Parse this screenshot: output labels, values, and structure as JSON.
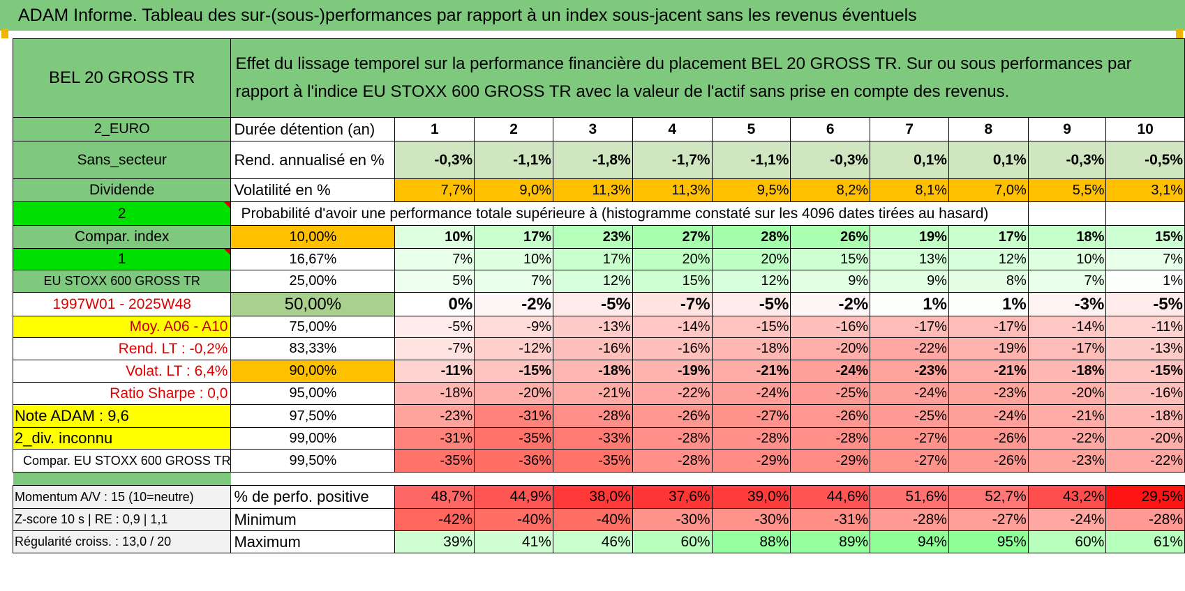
{
  "banner": "ADAM Informe. Tableau des sur-(sous-)performances par rapport à un index sous-jacent sans les revenus éventuels",
  "colors": {
    "header_green": "#7fc97f",
    "bright_green": "#00e000",
    "orange": "#ffc000",
    "yellow": "#ffff00",
    "red_text": "#e00000"
  },
  "instrument": "BEL 20 GROSS TR",
  "description": "Effet du lissage temporel sur la performance financière du placement BEL 20 GROSS TR. Sur ou sous performances par rapport à l'indice EU STOXX 600 GROSS TR avec la valeur de l'actif sans prise en compte des revenus.",
  "left": {
    "currency": "2_EURO",
    "sector": "Sans_secteur",
    "dividend": "Dividende",
    "code2": "2",
    "compar_index": "Compar. index",
    "code1": "1",
    "index_name": "EU STOXX 600 GROSS TR",
    "period": "1997W01 - 2025W48",
    "moy": "Moy. A06 - A10",
    "rend_lt": "Rend. LT :    -0,2%",
    "volat_lt": "Volat. LT :    6,4%",
    "ratio_sharpe": "Ratio Sharpe :     0,0",
    "note_adam": "Note ADAM : 9,6",
    "div_inconnu": "2_div. inconnu",
    "compar_full": "Compar. EU STOXX 600 GROSS TR",
    "momentum": "Momentum A/V : 15 (10=neutre)",
    "zscore": "Z-score 10 s | RE : 0,9 | 1,1",
    "regularite": "Régularité croiss. : 13,0 / 20"
  },
  "row_labels": {
    "duree": "Durée détention (an)",
    "rend": "Rend. annualisé en %",
    "vol": "Volatilité en %",
    "prob": "Probabilité d'avoir une performance totale supérieure à (histogramme constaté sur les 4096 dates tirées au hasard)",
    "pos": "% de perfo. positive",
    "min": "Minimum",
    "max": "Maximum"
  },
  "years": [
    "1",
    "2",
    "3",
    "4",
    "5",
    "6",
    "7",
    "8",
    "9",
    "10"
  ],
  "rend": [
    "-0,3%",
    "-1,1%",
    "-1,8%",
    "-1,7%",
    "-1,1%",
    "-0,3%",
    "0,1%",
    "0,1%",
    "-0,3%",
    "-0,5%"
  ],
  "vol": [
    "7,7%",
    "9,0%",
    "11,3%",
    "11,3%",
    "9,5%",
    "8,2%",
    "8,1%",
    "7,0%",
    "5,5%",
    "3,1%"
  ],
  "percentiles": [
    {
      "p": "10,00%",
      "values": [
        "10%",
        "17%",
        "23%",
        "27%",
        "28%",
        "26%",
        "19%",
        "17%",
        "18%",
        "15%"
      ]
    },
    {
      "p": "16,67%",
      "values": [
        "7%",
        "10%",
        "17%",
        "20%",
        "20%",
        "15%",
        "13%",
        "12%",
        "10%",
        "7%"
      ]
    },
    {
      "p": "25,00%",
      "values": [
        "5%",
        "7%",
        "12%",
        "15%",
        "12%",
        "9%",
        "9%",
        "8%",
        "7%",
        "1%"
      ]
    },
    {
      "p": "50,00%",
      "values": [
        "0%",
        "-2%",
        "-5%",
        "-7%",
        "-5%",
        "-2%",
        "1%",
        "1%",
        "-3%",
        "-5%"
      ]
    },
    {
      "p": "75,00%",
      "values": [
        "-5%",
        "-9%",
        "-13%",
        "-14%",
        "-15%",
        "-16%",
        "-17%",
        "-17%",
        "-14%",
        "-11%"
      ]
    },
    {
      "p": "83,33%",
      "values": [
        "-7%",
        "-12%",
        "-16%",
        "-16%",
        "-18%",
        "-20%",
        "-22%",
        "-19%",
        "-17%",
        "-13%"
      ]
    },
    {
      "p": "90,00%",
      "values": [
        "-11%",
        "-15%",
        "-18%",
        "-19%",
        "-21%",
        "-24%",
        "-23%",
        "-21%",
        "-18%",
        "-15%"
      ]
    },
    {
      "p": "95,00%",
      "values": [
        "-18%",
        "-20%",
        "-21%",
        "-22%",
        "-24%",
        "-25%",
        "-24%",
        "-23%",
        "-20%",
        "-16%"
      ]
    },
    {
      "p": "97,50%",
      "values": [
        "-23%",
        "-31%",
        "-28%",
        "-26%",
        "-27%",
        "-26%",
        "-25%",
        "-24%",
        "-21%",
        "-18%"
      ]
    },
    {
      "p": "99,00%",
      "values": [
        "-31%",
        "-35%",
        "-33%",
        "-28%",
        "-28%",
        "-28%",
        "-27%",
        "-26%",
        "-22%",
        "-20%"
      ]
    },
    {
      "p": "99,50%",
      "values": [
        "-35%",
        "-36%",
        "-35%",
        "-28%",
        "-29%",
        "-29%",
        "-27%",
        "-26%",
        "-23%",
        "-22%"
      ]
    }
  ],
  "pos": [
    "48,7%",
    "44,9%",
    "38,0%",
    "37,6%",
    "39,0%",
    "44,6%",
    "51,6%",
    "52,7%",
    "43,2%",
    "29,5%"
  ],
  "min": [
    "-42%",
    "-40%",
    "-40%",
    "-30%",
    "-30%",
    "-31%",
    "-28%",
    "-27%",
    "-24%",
    "-28%"
  ],
  "max": [
    "39%",
    "41%",
    "46%",
    "60%",
    "88%",
    "89%",
    "94%",
    "95%",
    "60%",
    "61%"
  ]
}
